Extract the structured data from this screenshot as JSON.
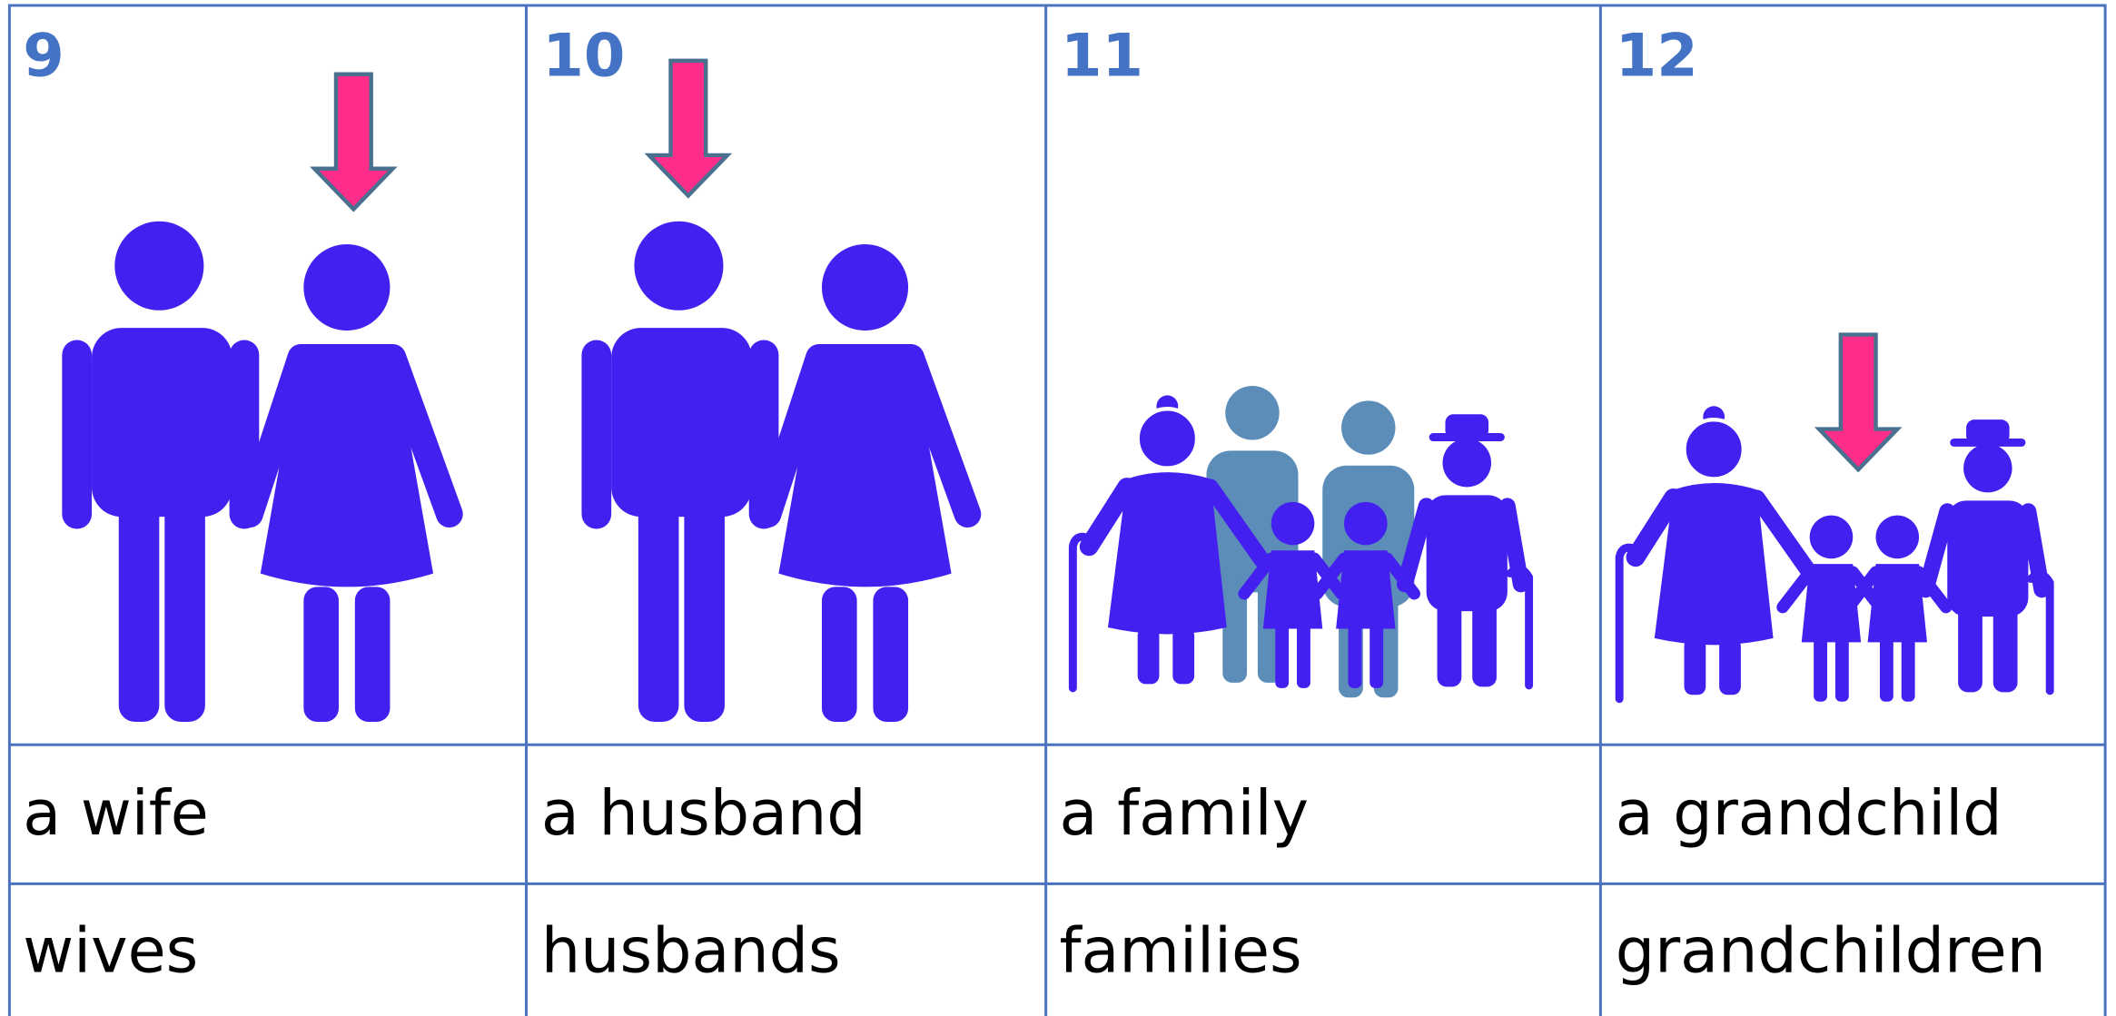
{
  "cards": [
    {
      "number": "9",
      "singular": "a wife",
      "plural": "wives"
    },
    {
      "number": "10",
      "singular": "a husband",
      "plural": "husbands"
    },
    {
      "number": "11",
      "singular": "a family",
      "plural": "families"
    },
    {
      "number": "12",
      "singular": "a grandchild",
      "plural": "grandchildren"
    }
  ]
}
